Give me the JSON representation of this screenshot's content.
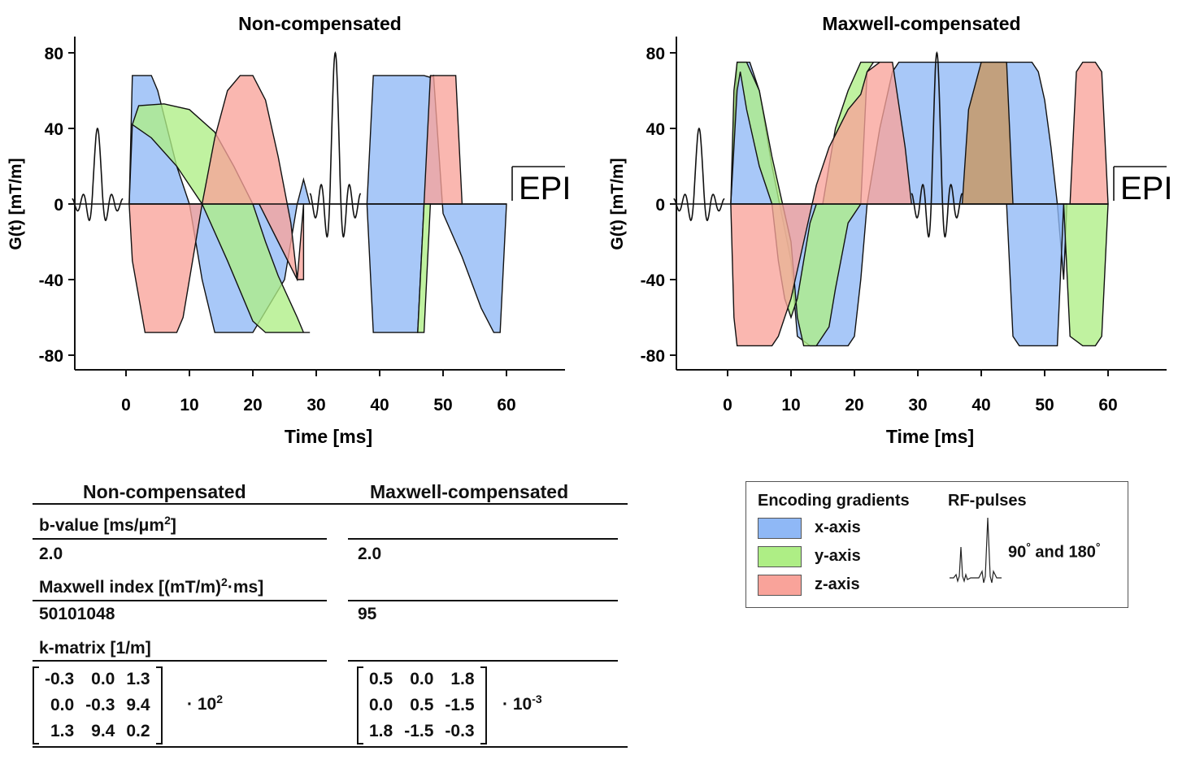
{
  "colors": {
    "x_axis": "#8fb8f6",
    "y_axis": "#aeee85",
    "z_axis": "#f9a39a",
    "overlap": "#c9955a"
  },
  "chart_data": [
    {
      "type": "area",
      "title": "Non-compensated",
      "xlabel": "Time [ms]",
      "ylabel": "G(t) [mT/m]",
      "xlim": [
        -8,
        73
      ],
      "ylim": [
        -88,
        88
      ],
      "x_ticks": [
        0,
        10,
        20,
        30,
        40,
        50,
        60
      ],
      "y_ticks": [
        80,
        40,
        0,
        -40,
        -80
      ],
      "epi_label": "EPI",
      "series": [
        {
          "name": "x-axis",
          "x": [
            0.5,
            1,
            4,
            5,
            8,
            10,
            12,
            14,
            20,
            25,
            27,
            28,
            29,
            38,
            39,
            46,
            47,
            48,
            48.5,
            50,
            53,
            56,
            58,
            59,
            60
          ],
          "y": [
            0,
            68,
            68,
            60,
            20,
            0,
            -40,
            -68,
            -68,
            -40,
            0,
            13,
            0,
            0,
            68,
            68,
            68,
            67,
            68,
            -5,
            -28,
            -55,
            -68,
            -68,
            0
          ]
        },
        {
          "name": "y-axis",
          "x": [
            0.5,
            1,
            2,
            6,
            10,
            14,
            17,
            20,
            22,
            24,
            27,
            28,
            29,
            28,
            27,
            24,
            23,
            22,
            20,
            16,
            12,
            8,
            4,
            1
          ],
          "y": [
            0,
            42,
            52,
            53,
            50,
            38,
            20,
            0,
            -20,
            -38,
            -60,
            -68,
            -68,
            -68,
            -68,
            -68,
            -68,
            -68,
            -62,
            -30,
            0,
            20,
            35,
            42
          ]
        },
        {
          "name": "z-axis",
          "x": [
            0.5,
            1,
            3,
            6,
            8,
            9,
            10,
            12,
            14,
            16,
            18,
            20,
            22,
            24,
            26,
            27,
            28,
            28,
            27,
            24,
            21,
            20,
            18,
            16,
            14,
            12,
            10,
            9,
            8,
            6,
            3
          ],
          "y": [
            0,
            -30,
            -68,
            -68,
            -68,
            -60,
            -40,
            0,
            35,
            60,
            68,
            68,
            55,
            25,
            -10,
            -40,
            -40,
            0,
            -40,
            -20,
            0,
            0,
            0,
            0,
            0,
            0,
            0,
            0,
            0,
            0,
            0
          ]
        },
        {
          "name": "x-axis (EPI)",
          "x": [
            38,
            39,
            46,
            47,
            38
          ],
          "y": [
            0,
            -68,
            -68,
            0,
            0
          ]
        },
        {
          "name": "z-axis (EPI)",
          "x": [
            47,
            48,
            52,
            53,
            52,
            48
          ],
          "y": [
            0,
            68,
            68,
            0,
            0,
            0
          ]
        },
        {
          "name": "y-axis (EPI)",
          "x": [
            46,
            47,
            48,
            47
          ],
          "y": [
            -68,
            -68,
            0,
            0
          ]
        }
      ],
      "rf_pulses": [
        {
          "center": -4.5,
          "peak": 40
        },
        {
          "center": 33,
          "peak": 80
        }
      ]
    },
    {
      "type": "area",
      "title": "Maxwell-compensated",
      "xlabel": "Time [ms]",
      "ylabel": "G(t) [mT/m]",
      "xlim": [
        -8,
        73
      ],
      "ylim": [
        -88,
        88
      ],
      "x_ticks": [
        0,
        10,
        20,
        30,
        40,
        50,
        60
      ],
      "y_ticks": [
        80,
        40,
        0,
        -40,
        -80
      ],
      "epi_label": "EPI",
      "series": [
        {
          "name": "x-axis",
          "x": [
            0.5,
            1.5,
            3.5,
            5,
            7,
            10,
            11,
            13,
            19,
            20,
            21,
            22,
            24,
            26,
            27,
            28,
            38,
            40,
            44,
            46,
            48,
            49,
            50,
            51,
            52,
            53,
            53.5
          ],
          "y": [
            0,
            75,
            75,
            60,
            20,
            -30,
            -70,
            -75,
            -75,
            -70,
            -40,
            0,
            40,
            70,
            75,
            75,
            75,
            75,
            75,
            75,
            75,
            70,
            55,
            30,
            0,
            -40,
            0
          ]
        },
        {
          "name": "y-axis",
          "x": [
            0.5,
            1,
            1.5,
            2,
            3,
            5,
            7,
            10,
            11,
            12,
            14,
            16,
            17,
            19,
            21,
            22,
            23,
            24,
            23,
            22,
            21,
            19,
            17,
            15,
            14,
            13,
            12,
            11,
            10,
            9,
            8,
            7,
            5,
            3,
            2,
            1.5
          ],
          "y": [
            0,
            60,
            75,
            75,
            75,
            60,
            25,
            -20,
            -60,
            -75,
            -75,
            -65,
            -45,
            -10,
            0,
            70,
            75,
            75,
            75,
            75,
            75,
            60,
            40,
            0,
            0,
            -10,
            -30,
            -50,
            -60,
            -50,
            -30,
            0,
            20,
            50,
            70,
            60
          ]
        },
        {
          "name": "z-axis",
          "x": [
            0.5,
            1,
            1.5,
            4,
            7,
            8,
            10,
            12,
            14,
            16,
            19,
            21,
            22,
            24,
            26,
            28,
            29,
            28,
            27,
            26,
            24,
            22,
            20,
            18,
            16,
            14,
            12,
            10,
            8,
            6,
            4
          ],
          "y": [
            0,
            -60,
            -75,
            -75,
            -75,
            -70,
            -50,
            -20,
            10,
            30,
            50,
            58,
            70,
            75,
            75,
            30,
            0,
            0,
            0,
            0,
            0,
            0,
            0,
            0,
            0,
            0,
            0,
            0,
            0,
            0,
            0
          ]
        },
        {
          "name": "x-axis (EPI)",
          "x": [
            44,
            45,
            46,
            49,
            52,
            53,
            50,
            48,
            46,
            45
          ],
          "y": [
            0,
            -70,
            -75,
            -75,
            -75,
            0,
            0,
            0,
            0,
            0
          ]
        },
        {
          "name": "y-axis (EPI)",
          "x": [
            53,
            54,
            56,
            58,
            59,
            60,
            59,
            58,
            56,
            55,
            54
          ],
          "y": [
            0,
            -70,
            -75,
            -75,
            -70,
            0,
            0,
            0,
            0,
            0,
            0
          ]
        },
        {
          "name": "z-axis (EPI)",
          "x": [
            54,
            55,
            56,
            58,
            59,
            60,
            59,
            58,
            56,
            55
          ],
          "y": [
            0,
            70,
            75,
            75,
            70,
            0,
            0,
            0,
            0,
            0
          ]
        },
        {
          "name": "overlap (EPI)",
          "x": [
            37,
            38,
            40,
            42,
            44,
            45,
            44,
            42,
            40,
            38
          ],
          "y": [
            0,
            50,
            75,
            75,
            75,
            0,
            0,
            0,
            0,
            0
          ]
        }
      ],
      "rf_pulses": [
        {
          "center": -4.5,
          "peak": 40
        },
        {
          "center": 33,
          "peak": 80
        }
      ]
    }
  ],
  "table": {
    "header_left": "Non-compensated",
    "header_right": "Maxwell-compensated",
    "bvalue_label": "b-value [ms/μm",
    "bvalue_sup": "2",
    "bvalue_label_end": "]",
    "bvalue_left": "2.0",
    "bvalue_right": "2.0",
    "maxwell_label": "Maxwell index [(mT/m)",
    "maxwell_sup": "2",
    "maxwell_label_end": "·ms]",
    "maxwell_left": "50101048",
    "maxwell_right": "95",
    "kmatrix_label": "k-matrix [1/m]",
    "kmatrix_left": [
      [
        "-0.3",
        "0.0",
        "1.3"
      ],
      [
        "0.0",
        "-0.3",
        "9.4"
      ],
      [
        "1.3",
        "9.4",
        "0.2"
      ]
    ],
    "kmatrix_left_scale": "· 10",
    "kmatrix_left_exp": "2",
    "kmatrix_right": [
      [
        "0.5",
        "0.0",
        "1.8"
      ],
      [
        "0.0",
        "0.5",
        "-1.5"
      ],
      [
        "1.8",
        "-1.5",
        "-0.3"
      ]
    ],
    "kmatrix_right_scale": "· 10",
    "kmatrix_right_exp": "-3"
  },
  "legend": {
    "encoding_title": "Encoding gradients",
    "rf_title": "RF-pulses",
    "x_label": "x-axis",
    "y_label": "y-axis",
    "z_label": "z-axis",
    "rf_text": "90",
    "rf_deg": "°",
    "rf_and": " and 180",
    "rf_deg2": "°"
  }
}
